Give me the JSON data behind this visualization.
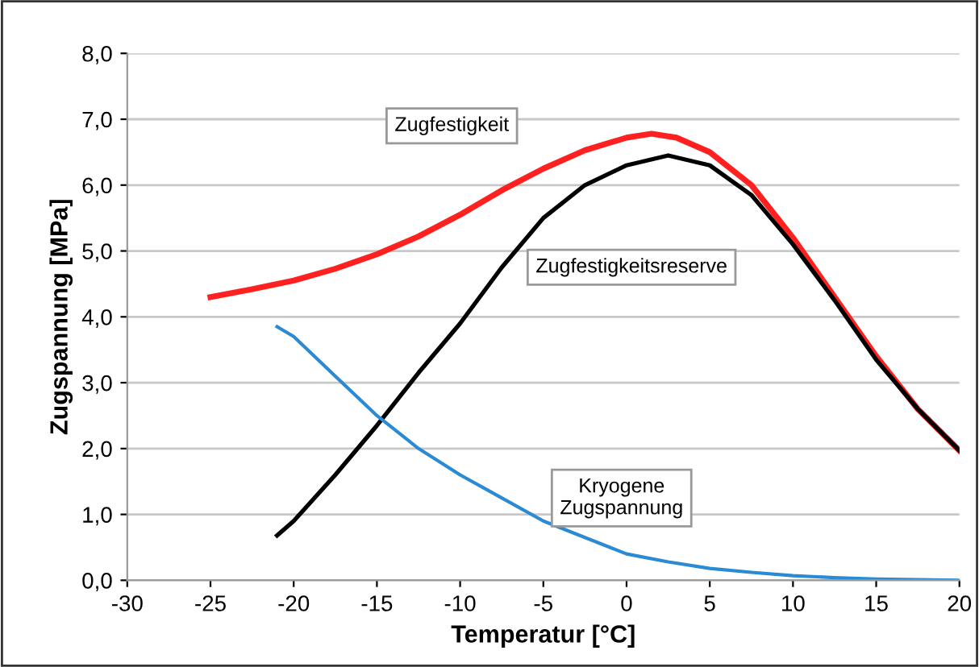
{
  "chart_data": {
    "type": "line",
    "xlabel": "Temperatur [°C]",
    "ylabel": "Zugspannung [MPa]",
    "xlim": [
      -30,
      20
    ],
    "xticks": [
      -30,
      -25,
      -20,
      -15,
      -10,
      -5,
      0,
      5,
      10,
      15,
      20
    ],
    "ylim": [
      0,
      8
    ],
    "yticks": [
      {
        "value": 0,
        "label": "0,0"
      },
      {
        "value": 1,
        "label": "1,0"
      },
      {
        "value": 2,
        "label": "2,0"
      },
      {
        "value": 3,
        "label": "3,0"
      },
      {
        "value": 4,
        "label": "4,0"
      },
      {
        "value": 5,
        "label": "5,0"
      },
      {
        "value": 6,
        "label": "6,0"
      },
      {
        "value": 7,
        "label": "7,0"
      },
      {
        "value": 8,
        "label": "8,0"
      }
    ],
    "grid": "y",
    "marker": "none",
    "line_style": "solid",
    "series": [
      {
        "name": "Zugfestigkeit",
        "color": "#ff2020",
        "x": [
          -25,
          -22.5,
          -20,
          -17.5,
          -15,
          -12.5,
          -10,
          -7.5,
          -5,
          -2.5,
          0,
          1.5,
          3,
          5,
          7.5,
          10,
          12.5,
          15,
          17.5,
          20
        ],
        "values": [
          4.3,
          4.42,
          4.55,
          4.73,
          4.95,
          5.22,
          5.55,
          5.92,
          6.25,
          6.53,
          6.72,
          6.78,
          6.72,
          6.5,
          6.0,
          5.2,
          4.3,
          3.4,
          2.6,
          1.97
        ]
      },
      {
        "name": "Zugfestigkeitsreserve",
        "color": "#000000",
        "x": [
          -21,
          -20,
          -17.5,
          -15,
          -12.5,
          -10,
          -7.5,
          -5,
          -2.5,
          0,
          2.5,
          5,
          7.5,
          10,
          12.5,
          15,
          17.5,
          20
        ],
        "values": [
          0.68,
          0.9,
          1.6,
          2.35,
          3.15,
          3.9,
          4.75,
          5.5,
          6.0,
          6.3,
          6.45,
          6.3,
          5.85,
          5.1,
          4.25,
          3.35,
          2.6,
          1.97
        ]
      },
      {
        "name": "Kryogene\nZugspannung",
        "color": "#2a8ad4",
        "x": [
          -21,
          -20,
          -17.5,
          -15,
          -12.5,
          -10,
          -7.5,
          -5,
          -2.5,
          0,
          2.5,
          5,
          7.5,
          10,
          12.5,
          15,
          17.5,
          20
        ],
        "values": [
          3.85,
          3.7,
          3.1,
          2.5,
          2.0,
          1.6,
          1.25,
          0.9,
          0.65,
          0.4,
          0.28,
          0.18,
          0.12,
          0.07,
          0.04,
          0.02,
          0.01,
          0.0
        ]
      }
    ],
    "legend": false
  }
}
